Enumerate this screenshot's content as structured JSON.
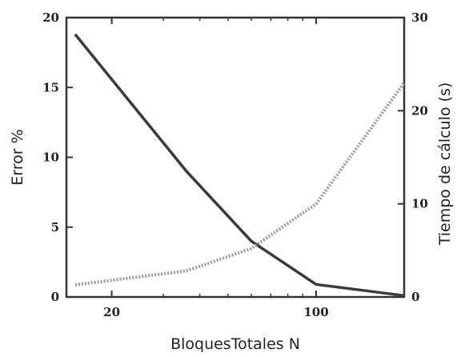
{
  "chart_data": {
    "type": "line",
    "xlabel": "BloquesTotales N",
    "ylabel": "Error %",
    "ylabel_right": "Tiempo de cálculo (s)",
    "x_scale": "log",
    "xlim": [
      14,
      200
    ],
    "ylim": [
      0,
      20
    ],
    "ylim_right": [
      0,
      30
    ],
    "x_ticks": [
      20,
      100
    ],
    "x_tick_labels": [
      "20",
      "100"
    ],
    "y_ticks": [
      0,
      5,
      10,
      15,
      20
    ],
    "y_tick_labels": [
      "0",
      "5",
      "10",
      "15",
      "20"
    ],
    "y_right_ticks": [
      0,
      10,
      20,
      30
    ],
    "y_right_tick_labels": [
      "0",
      "10",
      "20",
      "30"
    ],
    "grid": false,
    "legend": "none",
    "series": [
      {
        "axis": "left",
        "style": "solid",
        "color": "#3a3a3a",
        "x": [
          15,
          36,
          60,
          100,
          200
        ],
        "values": [
          18.8,
          9.0,
          4.0,
          0.9,
          0.1
        ]
      },
      {
        "axis": "right",
        "style": "dotted",
        "color": "#9a9a9a",
        "x": [
          15,
          36,
          60,
          100,
          200
        ],
        "values": [
          1.3,
          2.8,
          5.2,
          10.0,
          23.0
        ]
      }
    ]
  }
}
